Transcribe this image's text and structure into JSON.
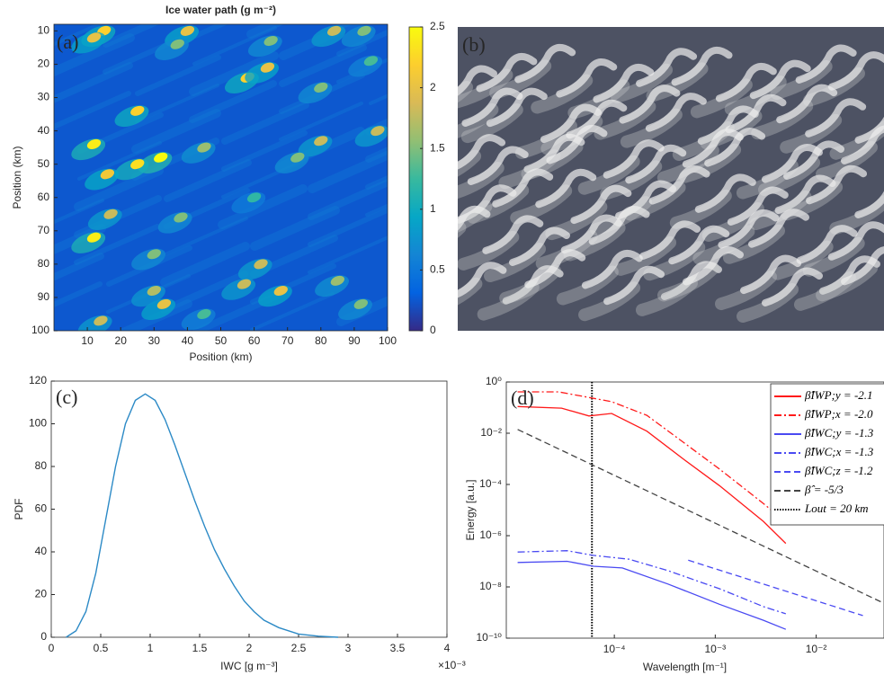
{
  "chart_data": [
    {
      "type": "heatmap",
      "panel_label": "(a)",
      "title": "Ice water path (g m⁻²)",
      "xlabel": "Position (km)",
      "ylabel": "Position (km)",
      "xlim": [
        0,
        100
      ],
      "ylim": [
        100,
        8
      ],
      "xticks": [
        10,
        20,
        30,
        40,
        50,
        60,
        70,
        80,
        90,
        100
      ],
      "yticks": [
        10,
        20,
        30,
        40,
        50,
        60,
        70,
        80,
        90,
        100
      ],
      "clim": [
        0,
        2.5
      ],
      "cticks": [
        0,
        0.5,
        1,
        1.5,
        2,
        2.5
      ],
      "colormap": [
        "#352a87",
        "#0363e1",
        "#1485d4",
        "#06a7c6",
        "#38b99e",
        "#92bf73",
        "#d9ba56",
        "#fcce2e",
        "#f9fb0e"
      ],
      "x": [
        15,
        12,
        40,
        37,
        84,
        93,
        65,
        58,
        64,
        80,
        95,
        25,
        12,
        32,
        25,
        16,
        45,
        80,
        97,
        73,
        17,
        12,
        38,
        30,
        62,
        68,
        57,
        33,
        30,
        14,
        85,
        92,
        45,
        60
      ],
      "y": [
        10,
        12,
        10,
        14,
        10,
        10,
        13,
        24,
        21,
        27,
        19,
        34,
        44,
        48,
        50,
        53,
        45,
        43,
        40,
        48,
        65,
        72,
        66,
        77,
        80,
        88,
        86,
        92,
        88,
        97,
        85,
        92,
        95,
        60
      ],
      "values": [
        2.2,
        2,
        2,
        1.5,
        1.8,
        1.5,
        1.5,
        2.2,
        2,
        1.5,
        1.3,
        2.2,
        2.4,
        2.5,
        2.3,
        2.1,
        1.6,
        1.8,
        1.8,
        1.5,
        1.8,
        2.4,
        1.5,
        1.5,
        1.8,
        2,
        1.8,
        2,
        1.7,
        1.8,
        1.6,
        1.5,
        1.3,
        1.2
      ]
    },
    {
      "type": "image",
      "panel_label": "(b)"
    },
    {
      "type": "line",
      "panel_label": "(c)",
      "xlabel": "IWC [g m⁻³]",
      "ylabel": "PDF",
      "x_offset_label": "×10⁻³",
      "xlim": [
        0,
        4
      ],
      "ylim": [
        0,
        120
      ],
      "xticks": [
        0,
        0.5,
        1,
        1.5,
        2,
        2.5,
        3,
        3.5,
        4
      ],
      "yticks": [
        0,
        20,
        40,
        60,
        80,
        100,
        120
      ],
      "color": "#2c8ac6",
      "x": [
        0.15,
        0.25,
        0.35,
        0.45,
        0.55,
        0.65,
        0.75,
        0.85,
        0.95,
        1.05,
        1.15,
        1.25,
        1.35,
        1.45,
        1.55,
        1.65,
        1.75,
        1.85,
        1.95,
        2.05,
        2.15,
        2.3,
        2.5,
        2.7,
        2.9
      ],
      "values": [
        0,
        3,
        12,
        30,
        55,
        80,
        100,
        111,
        114,
        111,
        102,
        90,
        77,
        64,
        52,
        41,
        32,
        24,
        17,
        12,
        8,
        4.5,
        1.5,
        0.5,
        0
      ]
    },
    {
      "type": "line",
      "panel_label": "(d)",
      "xlabel": "Wavelength [m⁻¹]",
      "ylabel": "Energy [a.u.]",
      "xscale": "log",
      "yscale": "log",
      "xlim": [
        8.5e-06,
        0.047
      ],
      "ylim": [
        1e-10,
        1
      ],
      "xticks": [
        {
          "value": 0.0001,
          "label": "10⁻⁴"
        },
        {
          "value": 0.001,
          "label": "10⁻³"
        },
        {
          "value": 0.01,
          "label": "10⁻²"
        }
      ],
      "yticks": [
        {
          "value": 1e-10,
          "label": "10⁻¹⁰"
        },
        {
          "value": 1e-08,
          "label": "10⁻⁸"
        },
        {
          "value": 1e-06,
          "label": "10⁻⁶"
        },
        {
          "value": 0.0001,
          "label": "10⁻⁴"
        },
        {
          "value": 0.01,
          "label": "10⁻²"
        },
        {
          "value": 1,
          "label": "10⁰"
        }
      ],
      "legend": "upper right",
      "series": [
        {
          "name": "β̂IWP;y = -2.1",
          "color": "#ff1a1a",
          "dash": "solid",
          "x": [
            1.1e-05,
            3e-05,
            5.6e-05,
            9.4e-05,
            0.00021,
            0.00048,
            0.0011,
            0.003,
            0.005
          ],
          "values": [
            0.11,
            0.095,
            0.047,
            0.059,
            0.012,
            0.001,
            9e-05,
            3.6e-06,
            5e-07
          ]
        },
        {
          "name": "β̂IWP;x = -2.0",
          "color": "#ff1a1a",
          "dash": "dashdot",
          "x": [
            1.1e-05,
            2.8e-05,
            5.6e-05,
            9.4e-05,
            0.00021,
            0.00048,
            0.0011,
            0.003,
            0.005
          ],
          "values": [
            0.41,
            0.41,
            0.25,
            0.17,
            0.05,
            0.0045,
            0.0004,
            1.8e-05,
            3.4e-06
          ]
        },
        {
          "name": "β̂IWC;y = -1.3",
          "color": "#4a4af2",
          "dash": "solid",
          "x": [
            1.1e-05,
            3.4e-05,
            6.2e-05,
            0.00012,
            0.00034,
            0.0011,
            0.003,
            0.005
          ],
          "values": [
            9e-08,
            1e-07,
            6.4e-08,
            5.5e-08,
            1.3e-08,
            2.1e-09,
            5e-10,
            2.2e-10
          ]
        },
        {
          "name": "β̂IWC;x = -1.3",
          "color": "#4a4af2",
          "dash": "dashdot",
          "x": [
            1.1e-05,
            3.4e-05,
            6.2e-05,
            0.00014,
            0.00034,
            0.0011,
            0.003,
            0.005
          ],
          "values": [
            2.3e-07,
            2.6e-07,
            1.7e-07,
            1.2e-07,
            4.3e-08,
            8.5e-09,
            1.7e-09,
            8.9e-10
          ]
        },
        {
          "name": "β̂IWC;z = -1.2",
          "color": "#4a4af2",
          "dash": "dashed",
          "x": [
            0.00054,
            0.029
          ],
          "values": [
            1.1e-07,
            7.6e-10
          ]
        },
        {
          "name": "β̂ = -5/3",
          "color": "#444444",
          "dash": "dashed",
          "x": [
            1.1e-05,
            0.047
          ],
          "values": [
            0.014,
            2.3e-09
          ]
        }
      ],
      "vlines": [
        {
          "name": "Lout = 20 km",
          "x": 6e-05,
          "color": "#000000",
          "dash": "dotted"
        }
      ]
    }
  ]
}
